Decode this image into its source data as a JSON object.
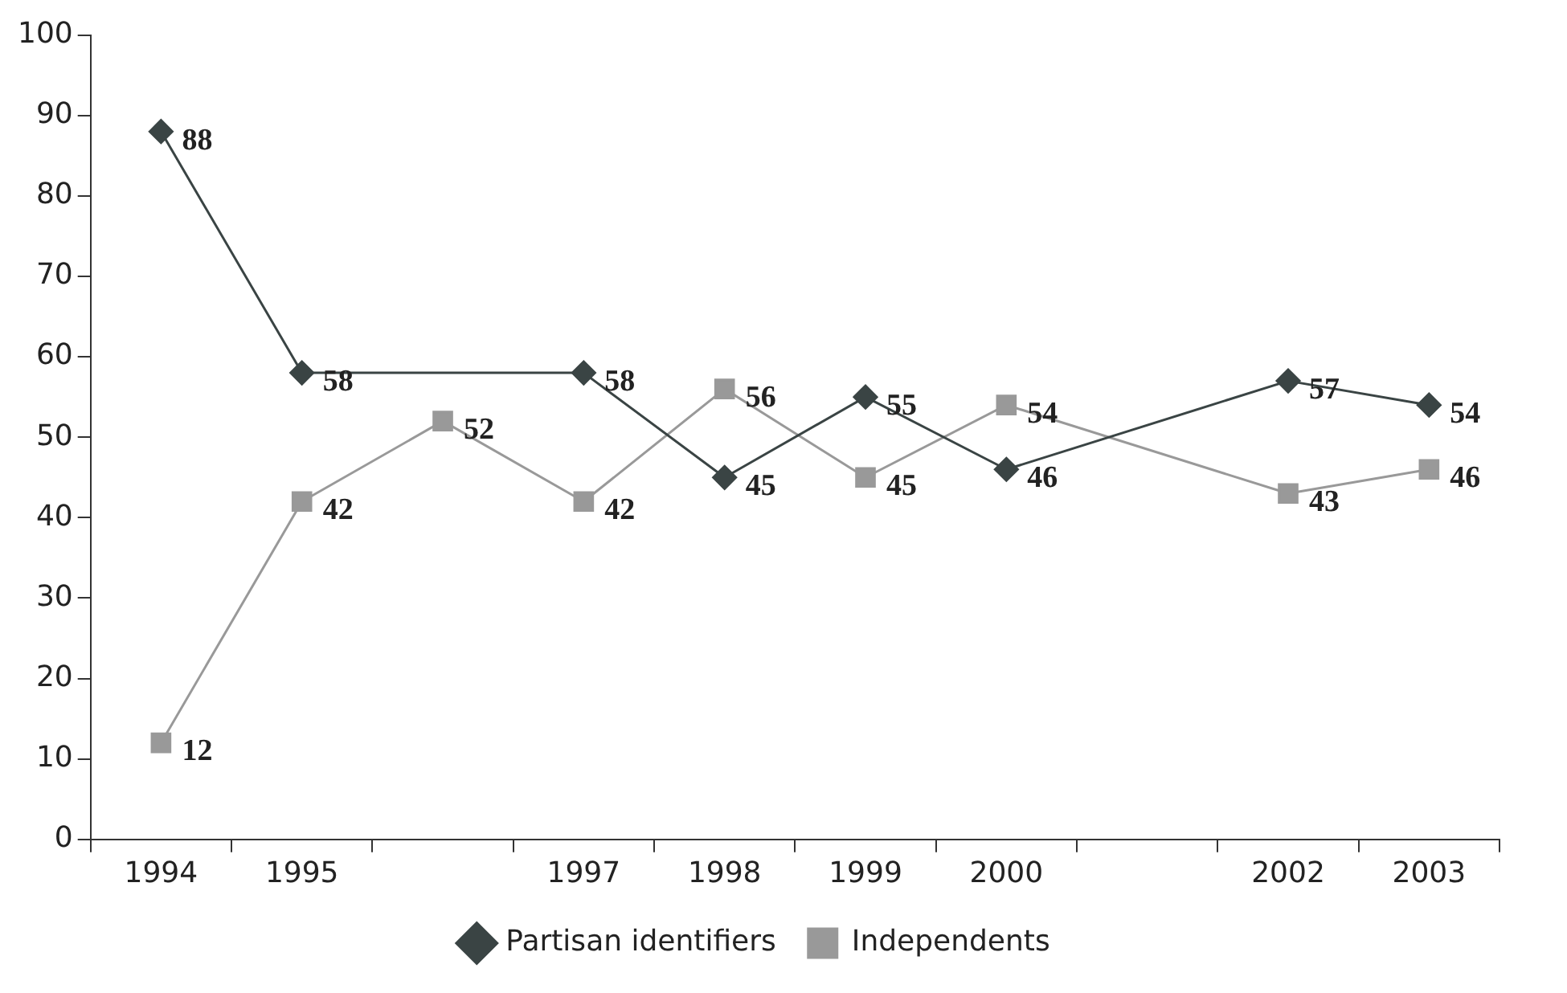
{
  "chart_data": {
    "type": "line",
    "categories": [
      "1994",
      "1995",
      null,
      "1997",
      "1998",
      "1999",
      "2000",
      null,
      "2002",
      "2003"
    ],
    "series": [
      {
        "name": "Partisan identifiers",
        "color": "#3a4444",
        "marker": "diamond",
        "values": [
          88,
          58,
          null,
          58,
          45,
          55,
          46,
          null,
          57,
          54
        ]
      },
      {
        "name": "Independents",
        "color": "#999999",
        "marker": "square",
        "values": [
          12,
          42,
          52,
          42,
          56,
          45,
          54,
          null,
          43,
          46
        ]
      }
    ],
    "ylim": [
      0,
      100
    ],
    "yticks": [
      0,
      10,
      20,
      30,
      40,
      50,
      60,
      70,
      80,
      90,
      100
    ],
    "grid": false,
    "legend": "bottom",
    "data_labels": true,
    "line_style": "solid"
  }
}
